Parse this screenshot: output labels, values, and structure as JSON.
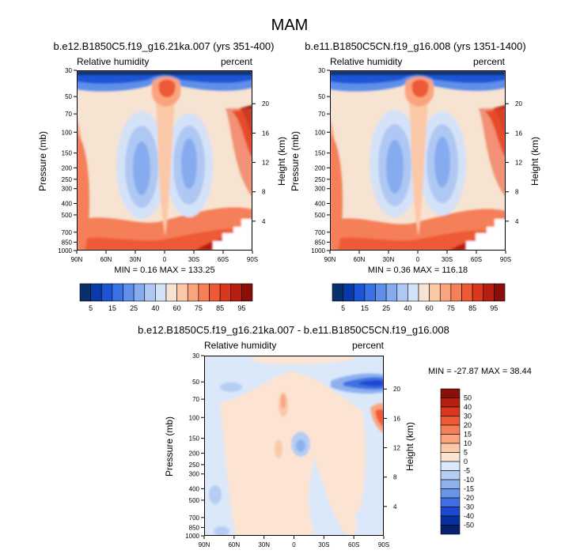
{
  "figure_title": "MAM",
  "chart_data": [
    {
      "id": "panel-1",
      "type": "contour",
      "title": "b.e12.B1850C5.f19_g16.21ka.007 (yrs 351-400)",
      "left_label": "Relative humidity",
      "right_label": "percent",
      "ylabel": "Pressure (mb)",
      "y2label": "Height (km)",
      "x_ticks": [
        "90N",
        "60N",
        "30N",
        "0",
        "30S",
        "60S",
        "90S"
      ],
      "x_values": [
        90,
        60,
        30,
        0,
        -30,
        -60,
        -90
      ],
      "xlim": [
        90,
        -90
      ],
      "pressure_ticks": [
        30,
        50,
        70,
        100,
        150,
        200,
        250,
        300,
        400,
        500,
        700,
        850,
        1000
      ],
      "height_ticks": [
        20,
        16,
        12,
        8,
        4
      ],
      "ylim": [
        1000,
        30
      ],
      "min": "0.16",
      "max": "133.25",
      "stats_label": "MIN =  0.16  MAX = 133.25"
    },
    {
      "id": "panel-2",
      "type": "contour",
      "title": "b.e11.B1850C5CN.f19_g16.008 (yrs 1351-1400)",
      "left_label": "Relative humidity",
      "right_label": "percent",
      "ylabel": "Pressure (mb)",
      "y2label": "Height (km)",
      "x_ticks": [
        "90N",
        "60N",
        "30N",
        "0",
        "30S",
        "60S",
        "90S"
      ],
      "x_values": [
        90,
        60,
        30,
        0,
        -30,
        -60,
        -90
      ],
      "xlim": [
        90,
        -90
      ],
      "pressure_ticks": [
        30,
        50,
        70,
        100,
        150,
        200,
        250,
        300,
        400,
        500,
        700,
        850,
        1000
      ],
      "height_ticks": [
        20,
        16,
        12,
        8,
        4
      ],
      "ylim": [
        1000,
        30
      ],
      "min": "0.36",
      "max": "116.18",
      "stats_label": "MIN =  0.36  MAX = 116.18"
    },
    {
      "id": "panel-3",
      "type": "contour",
      "title": "b.e12.B1850C5.f19_g16.21ka.007 - b.e11.B1850C5CN.f19_g16.008",
      "left_label": "Relative humidity",
      "right_label": "percent",
      "ylabel": "Pressure (mb)",
      "y2label": "Height (km)",
      "x_ticks": [
        "90N",
        "60N",
        "30N",
        "0",
        "30S",
        "60S",
        "90S"
      ],
      "x_values": [
        90,
        60,
        30,
        0,
        -30,
        -60,
        -90
      ],
      "xlim": [
        90,
        -90
      ],
      "pressure_ticks": [
        30,
        50,
        70,
        100,
        150,
        200,
        250,
        300,
        400,
        500,
        700,
        850,
        1000
      ],
      "height_ticks": [
        20,
        16,
        12,
        8,
        4
      ],
      "ylim": [
        1000,
        30
      ],
      "min": "-27.87",
      "max": "38.44",
      "stats_label": "MIN = -27.87  MAX =  38.44"
    }
  ],
  "colorbar_abs": {
    "labels": [
      "5",
      "15",
      "25",
      "40",
      "60",
      "75",
      "85",
      "95"
    ],
    "levels": [
      5,
      10,
      15,
      20,
      25,
      30,
      40,
      50,
      60,
      70,
      75,
      80,
      85,
      90,
      95
    ],
    "colors": [
      "#08306b",
      "#0a3aa8",
      "#1b55d6",
      "#3a72e6",
      "#5f8fea",
      "#86acef",
      "#afc8f3",
      "#d4e2f8",
      "#f7e3d2",
      "#fbc8a8",
      "#f9a47f",
      "#f57f59",
      "#ee5a36",
      "#d9381e",
      "#b51e10",
      "#8a0f08"
    ]
  },
  "colorbar_diff": {
    "labels": [
      "50",
      "40",
      "30",
      "20",
      "15",
      "10",
      "5",
      "0",
      "-5",
      "-10",
      "-15",
      "-20",
      "-30",
      "-40",
      "-50"
    ],
    "levels": [
      50,
      40,
      30,
      20,
      15,
      10,
      5,
      0,
      -5,
      -10,
      -15,
      -20,
      -30,
      -40,
      -50
    ],
    "colors": [
      "#8a0f08",
      "#b51e10",
      "#d9381e",
      "#ee5a36",
      "#f57f59",
      "#f9a47f",
      "#fbc8a8",
      "#fde4d2",
      "#dae8fa",
      "#b5cdf3",
      "#8eb1ee",
      "#6a93ea",
      "#3f70e3",
      "#1b49cf",
      "#0a2f9e",
      "#06206b"
    ]
  }
}
